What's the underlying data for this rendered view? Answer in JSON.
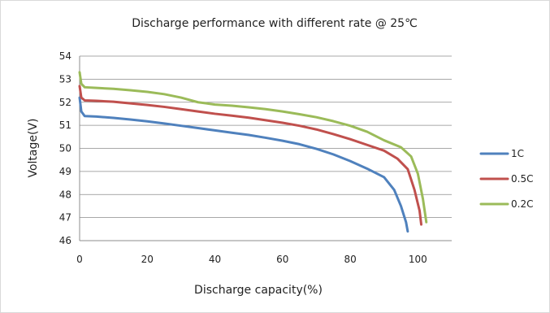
{
  "chart_data": {
    "type": "line",
    "title": "Discharge performance with different rate @ 25℃",
    "xlabel": "Discharge capacity(%)",
    "ylabel": "Voltage(V)",
    "xlim": [
      0,
      110
    ],
    "ylim": [
      46,
      54
    ],
    "xticks": [
      0,
      20,
      40,
      60,
      80,
      100
    ],
    "yticks": [
      46,
      47,
      48,
      49,
      50,
      51,
      52,
      53,
      54
    ],
    "grid": "horizontal",
    "legend_position": "right",
    "series": [
      {
        "name": "1C",
        "color": "#4f81bd",
        "points": [
          [
            0,
            52.2
          ],
          [
            0.5,
            51.6
          ],
          [
            1.5,
            51.4
          ],
          [
            5,
            51.38
          ],
          [
            10,
            51.32
          ],
          [
            15,
            51.25
          ],
          [
            20,
            51.17
          ],
          [
            25,
            51.08
          ],
          [
            30,
            50.98
          ],
          [
            35,
            50.88
          ],
          [
            40,
            50.78
          ],
          [
            45,
            50.68
          ],
          [
            50,
            50.58
          ],
          [
            55,
            50.46
          ],
          [
            60,
            50.33
          ],
          [
            65,
            50.18
          ],
          [
            70,
            49.98
          ],
          [
            75,
            49.74
          ],
          [
            80,
            49.45
          ],
          [
            85,
            49.12
          ],
          [
            90,
            48.75
          ],
          [
            93,
            48.2
          ],
          [
            95,
            47.5
          ],
          [
            96.5,
            46.8
          ],
          [
            97,
            46.4
          ]
        ]
      },
      {
        "name": "0.5C",
        "color": "#c0504d",
        "points": [
          [
            0,
            52.7
          ],
          [
            0.5,
            52.2
          ],
          [
            1.5,
            52.08
          ],
          [
            5,
            52.06
          ],
          [
            10,
            52.02
          ],
          [
            15,
            51.95
          ],
          [
            20,
            51.88
          ],
          [
            25,
            51.8
          ],
          [
            30,
            51.7
          ],
          [
            35,
            51.6
          ],
          [
            40,
            51.5
          ],
          [
            45,
            51.42
          ],
          [
            50,
            51.33
          ],
          [
            55,
            51.22
          ],
          [
            60,
            51.11
          ],
          [
            65,
            50.98
          ],
          [
            70,
            50.82
          ],
          [
            75,
            50.62
          ],
          [
            80,
            50.4
          ],
          [
            85,
            50.15
          ],
          [
            90,
            49.9
          ],
          [
            94,
            49.55
          ],
          [
            97,
            49.1
          ],
          [
            99,
            48.2
          ],
          [
            100.5,
            47.3
          ],
          [
            101,
            46.7
          ]
        ]
      },
      {
        "name": "0.2C",
        "color": "#9bbb59",
        "points": [
          [
            0,
            53.3
          ],
          [
            0.5,
            52.8
          ],
          [
            1.5,
            52.65
          ],
          [
            5,
            52.62
          ],
          [
            10,
            52.58
          ],
          [
            15,
            52.52
          ],
          [
            20,
            52.45
          ],
          [
            25,
            52.35
          ],
          [
            30,
            52.2
          ],
          [
            35,
            52.0
          ],
          [
            40,
            51.9
          ],
          [
            45,
            51.85
          ],
          [
            50,
            51.78
          ],
          [
            55,
            51.7
          ],
          [
            60,
            51.6
          ],
          [
            65,
            51.48
          ],
          [
            70,
            51.35
          ],
          [
            75,
            51.18
          ],
          [
            80,
            50.98
          ],
          [
            85,
            50.72
          ],
          [
            90,
            50.35
          ],
          [
            95,
            50.05
          ],
          [
            98,
            49.65
          ],
          [
            100,
            48.9
          ],
          [
            101.5,
            47.8
          ],
          [
            102.5,
            46.8
          ]
        ]
      }
    ]
  }
}
